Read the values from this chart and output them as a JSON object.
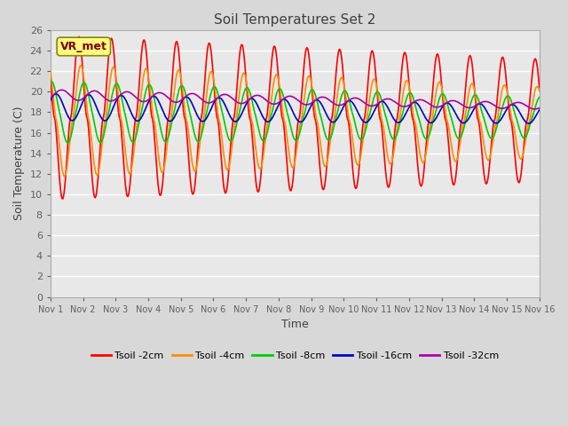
{
  "title": "Soil Temperatures Set 2",
  "xlabel": "Time",
  "ylabel": "Soil Temperature (C)",
  "ylim": [
    0,
    26
  ],
  "yticks": [
    0,
    2,
    4,
    6,
    8,
    10,
    12,
    14,
    16,
    18,
    20,
    22,
    24,
    26
  ],
  "xtick_labels": [
    "Nov 1",
    "Nov 2",
    "Nov 3",
    "Nov 4",
    "Nov 5",
    "Nov 6",
    "Nov 7",
    "Nov 8",
    "Nov 9",
    "Nov 10",
    "Nov 11",
    "Nov 12",
    "Nov 13",
    "Nov 14",
    "Nov 15",
    "Nov 16"
  ],
  "series_names": [
    "Tsoil -2cm",
    "Tsoil -4cm",
    "Tsoil -8cm",
    "Tsoil -16cm",
    "Tsoil -32cm"
  ],
  "series_colors": [
    "#ff0000",
    "#ff8c00",
    "#00cc00",
    "#0000cc",
    "#aa00aa"
  ],
  "series_lw": [
    1.2,
    1.2,
    1.2,
    1.2,
    1.2
  ],
  "annotation_text": "VR_met",
  "fig_bg_color": "#d8d8d8",
  "plot_bg_color": "#e8e8e8",
  "grid_color": "#ffffff",
  "title_color": "#404040",
  "axis_label_color": "#404040",
  "tick_label_color": "#606060",
  "annotation_bg": "#ffff80",
  "annotation_border": "#888800",
  "annotation_text_color": "#800000"
}
